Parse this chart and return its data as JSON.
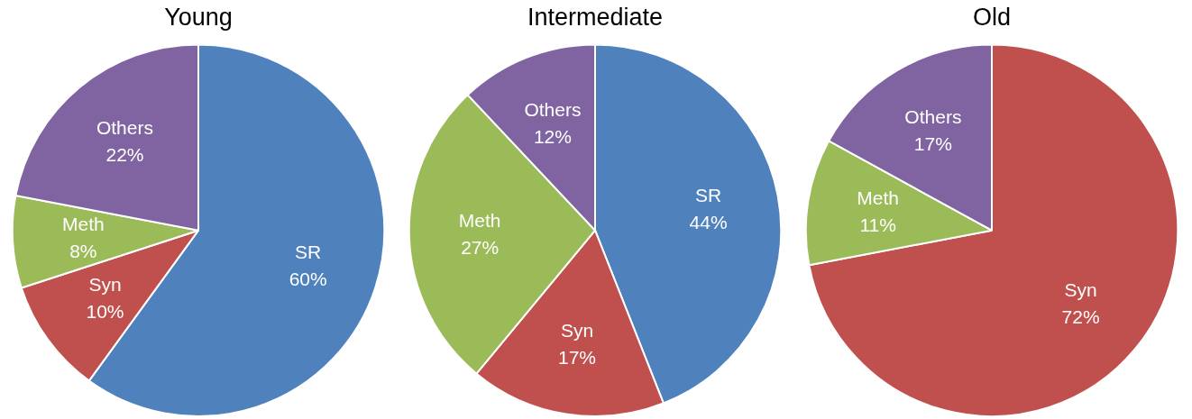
{
  "chart_data": [
    {
      "type": "pie",
      "title": "Young",
      "categories": [
        "SR",
        "Syn",
        "Meth",
        "Others"
      ],
      "values": [
        60,
        10,
        8,
        22
      ],
      "value_labels": [
        "60%",
        "10%",
        "8%",
        "22%"
      ],
      "colors": [
        "#4f81bd",
        "#c0504d",
        "#9bbb59",
        "#8064a2"
      ],
      "legend": false
    },
    {
      "type": "pie",
      "title": "Intermediate",
      "categories": [
        "SR",
        "Syn",
        "Meth",
        "Others"
      ],
      "values": [
        44,
        17,
        27,
        12
      ],
      "value_labels": [
        "44%",
        "17%",
        "27%",
        "12%"
      ],
      "colors": [
        "#4f81bd",
        "#c0504d",
        "#9bbb59",
        "#8064a2"
      ],
      "legend": false
    },
    {
      "type": "pie",
      "title": "Old",
      "categories": [
        "Syn",
        "Meth",
        "Others"
      ],
      "values": [
        72,
        11,
        17
      ],
      "value_labels": [
        "72%",
        "11%",
        "17%"
      ],
      "colors": [
        "#c0504d",
        "#9bbb59",
        "#8064a2"
      ],
      "legend": false
    }
  ]
}
